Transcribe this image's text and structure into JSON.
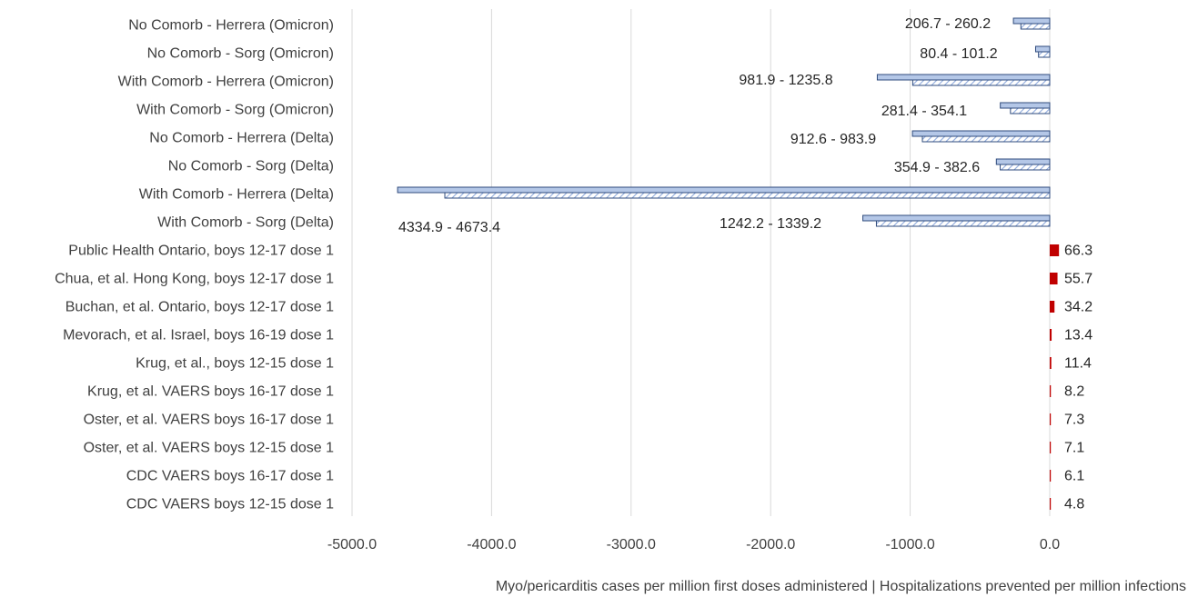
{
  "chart_data": {
    "type": "bar",
    "orientation": "horizontal",
    "xlabel": "Myo/pericarditis cases per million first doses administered | Hospitalizations prevented per million infections",
    "xlim": [
      -5000,
      0
    ],
    "xticks": [
      "-5000.0",
      "-4000.0",
      "-3000.0",
      "-2000.0",
      "-1000.0",
      "0.0"
    ],
    "grid": "vertical",
    "colors": {
      "range_fill": "#b4c7e7",
      "range_stroke": "#2f4b7c",
      "myo_fill": "#c00000",
      "grid": "#d9d9d9"
    },
    "categories": [
      "No Comorb - Herrera (Omicron)",
      "No Comorb - Sorg (Omicron)",
      "With Comorb - Herrera (Omicron)",
      "With Comorb - Sorg (Omicron)",
      "No Comorb - Herrera (Delta)",
      "No Comorb - Sorg (Delta)",
      "With Comorb - Herrera (Delta)",
      "With Comorb - Sorg (Delta)",
      "Public Health Ontario, boys 12-17 dose 1",
      "Chua, et al. Hong Kong, boys 12-17 dose 1",
      "Buchan, et al. Ontario, boys 12-17 dose 1",
      "Mevorach, et al. Israel, boys 16-19 dose 1",
      "Krug, et al., boys 12-15 dose 1",
      "Krug, et al. VAERS boys 16-17 dose 1",
      "Oster, et al. VAERS boys 16-17 dose 1",
      "Oster, et al. VAERS boys 12-15 dose 1",
      "CDC VAERS boys 16-17 dose 1",
      "CDC VAERS boys 12-15 dose 1"
    ],
    "series": [
      {
        "name": "Hospitalizations prevented (upper)",
        "style": "solid",
        "values": [
          -260.2,
          -101.2,
          -1235.8,
          -354.1,
          -983.9,
          -382.6,
          -4673.4,
          -1339.2,
          null,
          null,
          null,
          null,
          null,
          null,
          null,
          null,
          null,
          null
        ]
      },
      {
        "name": "Hospitalizations prevented (lower)",
        "style": "hatched",
        "values": [
          -206.7,
          -80.4,
          -981.9,
          -281.4,
          -912.6,
          -354.9,
          -4334.9,
          -1242.2,
          null,
          null,
          null,
          null,
          null,
          null,
          null,
          null,
          null,
          null
        ]
      },
      {
        "name": "Myo/pericarditis cases",
        "style": "red",
        "values": [
          null,
          null,
          null,
          null,
          null,
          null,
          null,
          null,
          66.3,
          55.7,
          34.2,
          13.4,
          11.4,
          8.2,
          7.3,
          7.1,
          6.1,
          4.8
        ]
      }
    ],
    "data_labels": [
      "206.7 - 260.2",
      "80.4 - 101.2",
      "981.9 - 1235.8",
      "281.4  - 354.1",
      "912.6 - 983.9",
      "354.9 - 382.6",
      "4334.9 - 4673.4",
      "1242.2 - 1339.2",
      "66.3",
      "55.7",
      "34.2",
      "13.4",
      "11.4",
      "8.2",
      "7.3",
      "7.1",
      "6.1",
      "4.8"
    ]
  }
}
